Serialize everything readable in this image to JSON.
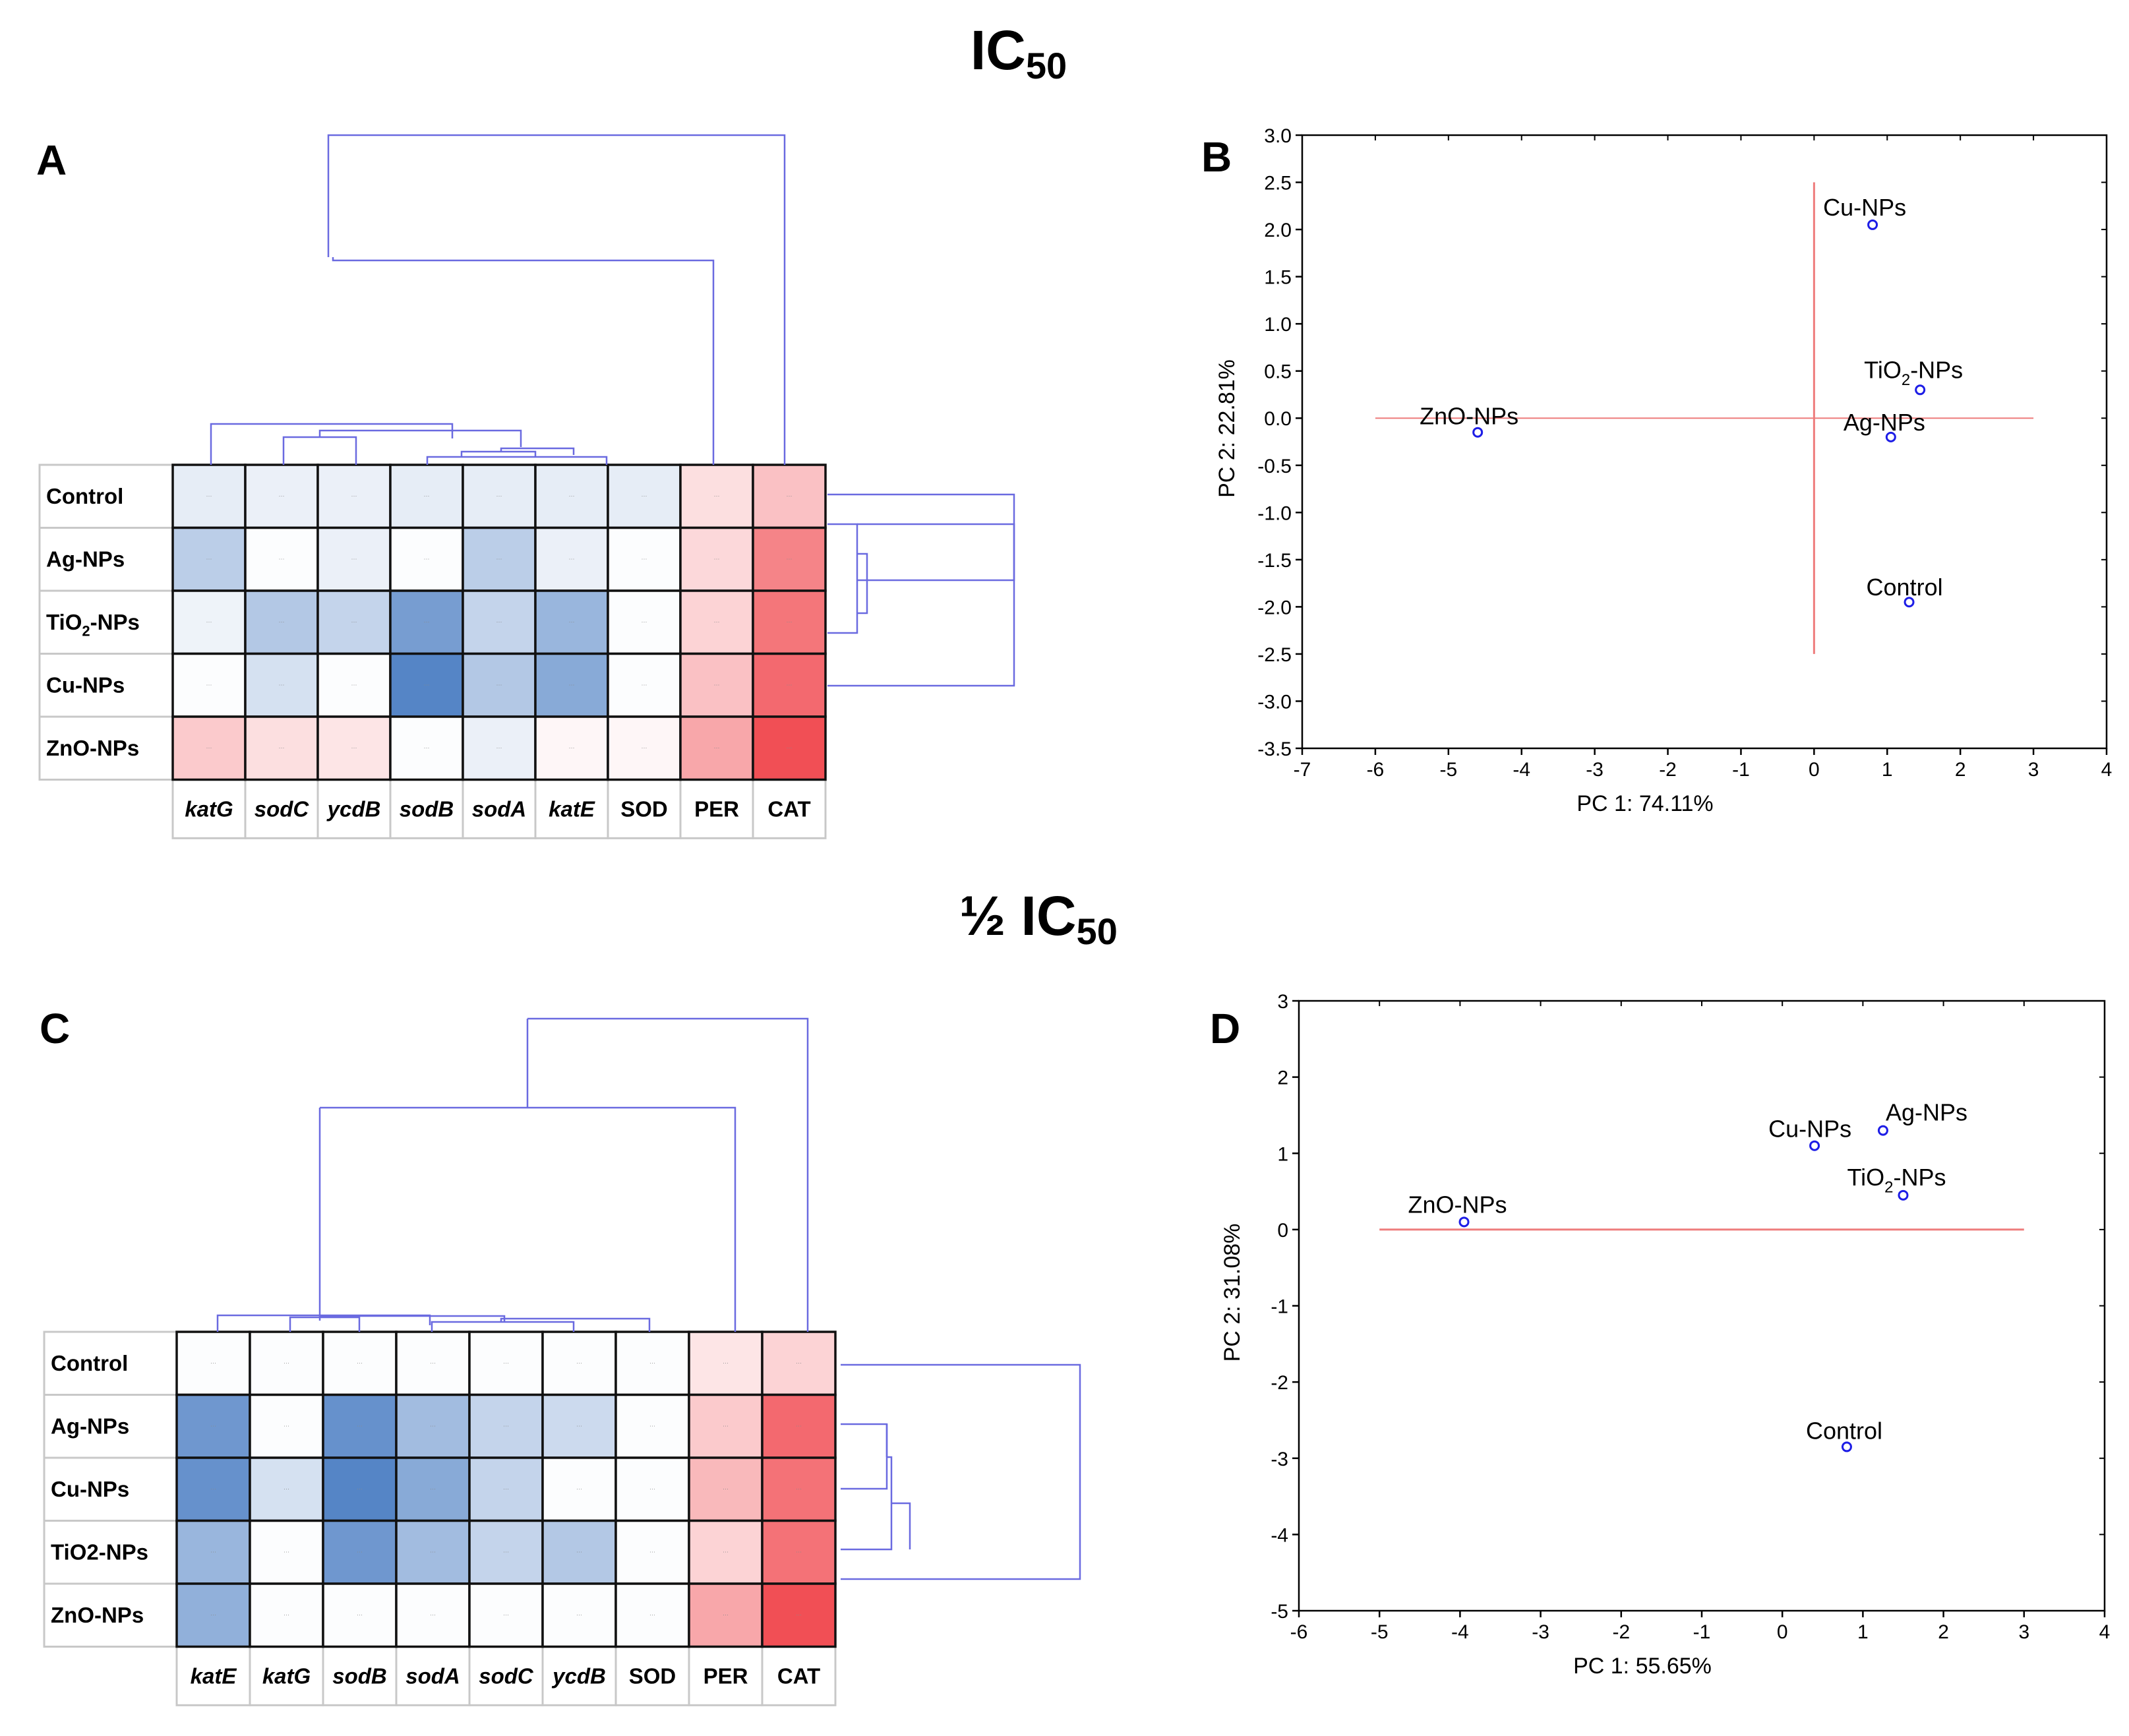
{
  "figure": {
    "top_title": {
      "main": "IC",
      "sub": "50"
    },
    "bottom_title": {
      "main": "½ IC",
      "sub": "50"
    },
    "panel_letters": [
      "A",
      "B",
      "C",
      "D"
    ]
  },
  "colors": {
    "dendrogram": "#6a6ae0",
    "grid_line": "#111111",
    "outer_grid": "#c8c8c8",
    "reference_line": "#ee7c7c",
    "point": "#1d1de6",
    "heat_low": "#5585c6",
    "heat_mid": "#ffffff",
    "heat_high": "#f14f55"
  },
  "chart_data": [
    {
      "panel": "A",
      "type": "heatmap",
      "title": "IC50",
      "rows": [
        "Control",
        "Ag-NPs",
        "TiO2-NPs",
        "Cu-NPs",
        "ZnO-NPs"
      ],
      "row_labels": [
        {
          "main": "Control",
          "sub": "",
          "tail": ""
        },
        {
          "main": "Ag-NPs",
          "sub": "",
          "tail": ""
        },
        {
          "main": "TiO",
          "sub": "2",
          "tail": "-NPs"
        },
        {
          "main": "Cu-NPs",
          "sub": "",
          "tail": ""
        },
        {
          "main": "ZnO-NPs",
          "sub": "",
          "tail": ""
        }
      ],
      "columns": [
        "katG",
        "sodC",
        "ycdB",
        "sodB",
        "sodA",
        "katE",
        "SOD",
        "PER",
        "CAT"
      ],
      "italic_columns": [
        "katG",
        "sodC",
        "ycdB",
        "sodB",
        "sodA",
        "katE"
      ],
      "cell_text": "···",
      "values": [
        [
          -0.15,
          -0.12,
          -0.12,
          -0.15,
          -0.15,
          -0.15,
          -0.15,
          0.18,
          0.35
        ],
        [
          -0.4,
          -0.02,
          -0.12,
          -0.02,
          -0.4,
          -0.12,
          -0.02,
          0.22,
          0.7
        ],
        [
          -0.1,
          -0.45,
          -0.35,
          -0.8,
          -0.35,
          -0.6,
          -0.02,
          0.25,
          0.78
        ],
        [
          -0.02,
          -0.25,
          -0.02,
          -1.0,
          -0.45,
          -0.7,
          -0.02,
          0.35,
          0.85
        ],
        [
          0.3,
          0.18,
          0.15,
          -0.02,
          -0.12,
          0.05,
          0.05,
          0.5,
          1.0
        ]
      ]
    },
    {
      "panel": "B",
      "type": "scatter",
      "title": "IC50",
      "xlabel": "PC 1: 74.11%",
      "ylabel": "PC 2: 22.81%",
      "xlim": [
        -7,
        4
      ],
      "ylim": [
        -3.5,
        3.0
      ],
      "xticks": [
        -7,
        -6,
        -5,
        -4,
        -3,
        -2,
        -1,
        0,
        1,
        2,
        3,
        4
      ],
      "yticks": [
        3.0,
        2.5,
        2.0,
        1.5,
        1.0,
        0.5,
        0.0,
        -0.5,
        -1.0,
        -1.5,
        -2.0,
        -2.5,
        -3.0,
        -3.5
      ],
      "hline": {
        "y": 0,
        "from": -6,
        "to": 3
      },
      "vline": {
        "x": 0,
        "from": -2.5,
        "to": 2.5
      },
      "points": [
        {
          "name": "Cu-NPs",
          "label": {
            "main": "Cu-NPs",
            "sub": "",
            "tail": ""
          },
          "x": 0.8,
          "y": 2.05
        },
        {
          "name": "TiO2-NPs",
          "label": {
            "main": "TiO",
            "sub": "2",
            "tail": "-NPs"
          },
          "x": 1.45,
          "y": 0.3
        },
        {
          "name": "Ag-NPs",
          "label": {
            "main": "Ag-NPs",
            "sub": "",
            "tail": ""
          },
          "x": 1.05,
          "y": -0.2
        },
        {
          "name": "ZnO-NPs",
          "label": {
            "main": "ZnO-NPs",
            "sub": "",
            "tail": ""
          },
          "x": -4.6,
          "y": -0.15
        },
        {
          "name": "Control",
          "label": {
            "main": "Control",
            "sub": "",
            "tail": ""
          },
          "x": 1.3,
          "y": -1.95
        }
      ]
    },
    {
      "panel": "C",
      "type": "heatmap",
      "title": "½ IC50",
      "rows": [
        "Control",
        "Ag-NPs",
        "Cu-NPs",
        "TiO2-NPs",
        "ZnO-NPs"
      ],
      "row_labels": [
        {
          "main": "Control",
          "sub": "",
          "tail": ""
        },
        {
          "main": "Ag-NPs",
          "sub": "",
          "tail": ""
        },
        {
          "main": "Cu-NPs",
          "sub": "",
          "tail": ""
        },
        {
          "main": "TiO2-NPs",
          "sub": "",
          "tail": ""
        },
        {
          "main": "ZnO-NPs",
          "sub": "",
          "tail": ""
        }
      ],
      "columns": [
        "katE",
        "katG",
        "sodB",
        "sodA",
        "sodC",
        "ycdB",
        "SOD",
        "PER",
        "CAT"
      ],
      "italic_columns": [
        "katE",
        "katG",
        "sodB",
        "sodA",
        "sodC",
        "ycdB"
      ],
      "cell_text": "···",
      "values": [
        [
          -0.02,
          -0.02,
          -0.02,
          -0.02,
          -0.02,
          -0.02,
          -0.02,
          0.15,
          0.25
        ],
        [
          -0.85,
          -0.02,
          -0.9,
          -0.55,
          -0.35,
          -0.3,
          -0.02,
          0.3,
          0.85
        ],
        [
          -0.9,
          -0.25,
          -1.0,
          -0.7,
          -0.35,
          -0.02,
          -0.02,
          0.4,
          0.8
        ],
        [
          -0.6,
          -0.02,
          -0.85,
          -0.55,
          -0.35,
          -0.45,
          -0.02,
          0.25,
          0.8
        ],
        [
          -0.65,
          -0.02,
          -0.02,
          -0.02,
          -0.02,
          -0.02,
          -0.02,
          0.5,
          1.0
        ]
      ]
    },
    {
      "panel": "D",
      "type": "scatter",
      "title": "½ IC50",
      "xlabel": "PC 1: 55.65%",
      "ylabel": "PC  2: 31.08%",
      "xlim": [
        -6,
        4
      ],
      "ylim": [
        -5,
        3
      ],
      "xticks": [
        -6,
        -5,
        -4,
        -3,
        -2,
        -1,
        0,
        1,
        2,
        3,
        4
      ],
      "yticks": [
        3,
        2,
        1,
        0,
        -1,
        -2,
        -3,
        -4,
        -5
      ],
      "hline": {
        "y": 0,
        "from": -5,
        "to": 3
      },
      "points": [
        {
          "name": "Ag-NPs",
          "label": {
            "main": "Ag-NPs",
            "sub": "",
            "tail": ""
          },
          "x": 1.25,
          "y": 1.3
        },
        {
          "name": "Cu-NPs",
          "label": {
            "main": "Cu-NPs",
            "sub": "",
            "tail": ""
          },
          "x": 0.4,
          "y": 1.1
        },
        {
          "name": "TiO2-NPs",
          "label": {
            "main": "TiO",
            "sub": "2",
            "tail": "-NPs"
          },
          "x": 1.5,
          "y": 0.45
        },
        {
          "name": "ZnO-NPs",
          "label": {
            "main": "ZnO-NPs",
            "sub": "",
            "tail": ""
          },
          "x": -3.95,
          "y": 0.1
        },
        {
          "name": "Control",
          "label": {
            "main": "Control",
            "sub": "",
            "tail": ""
          },
          "x": 0.8,
          "y": -2.85
        }
      ]
    }
  ]
}
